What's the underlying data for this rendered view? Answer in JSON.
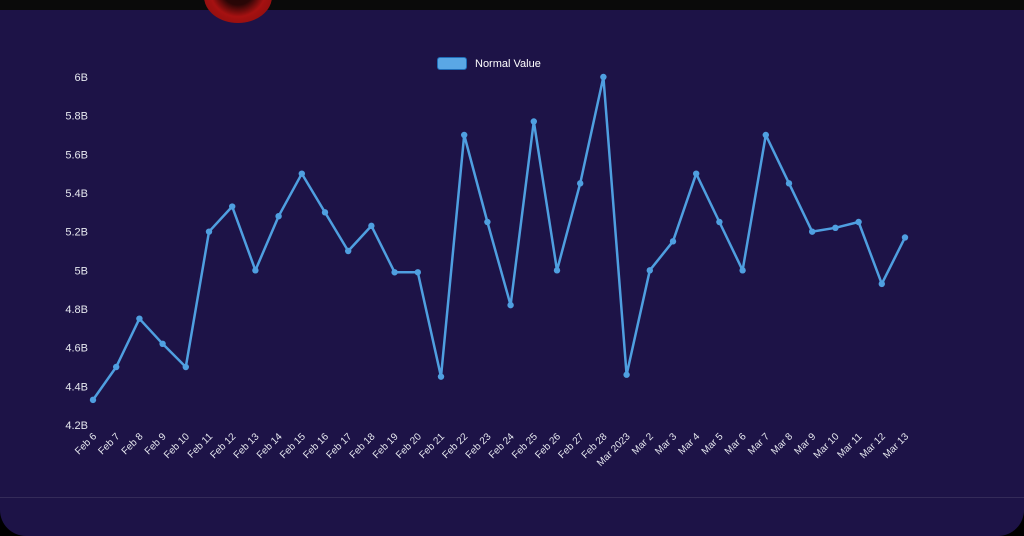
{
  "window": {
    "background_color": "#000000",
    "top_bar_color": "#0a0a0a",
    "panel_color": "#1d1347"
  },
  "logo": {
    "color": "#a61111"
  },
  "legend": {
    "label": "Normal Value",
    "swatch_fill": "#5aa7e5",
    "swatch_border": "#1f6db8"
  },
  "chart_data": {
    "type": "line",
    "title": "",
    "xlabel": "",
    "ylabel": "",
    "categories": [
      "Feb 6",
      "Feb 7",
      "Feb 8",
      "Feb 9",
      "Feb 10",
      "Feb 11",
      "Feb 12",
      "Feb 13",
      "Feb 14",
      "Feb 15",
      "Feb 16",
      "Feb 17",
      "Feb 18",
      "Feb 19",
      "Feb 20",
      "Feb 21",
      "Feb 22",
      "Feb 23",
      "Feb 24",
      "Feb 25",
      "Feb 26",
      "Feb 27",
      "Feb 28",
      "Mar 2023",
      "Mar 2",
      "Mar 3",
      "Mar 4",
      "Mar 5",
      "Mar 6",
      "Mar 7",
      "Mar 8",
      "Mar 9",
      "Mar 10",
      "Mar 11",
      "Mar 12",
      "Mar 13"
    ],
    "series": [
      {
        "name": "Normal Value",
        "color": "#4f9fe0",
        "values": [
          4.33,
          4.5,
          4.75,
          4.62,
          4.5,
          5.2,
          5.33,
          5.0,
          5.28,
          5.5,
          5.3,
          5.1,
          5.23,
          4.99,
          4.99,
          4.45,
          5.7,
          5.25,
          4.82,
          5.77,
          5.0,
          5.45,
          6.0,
          4.46,
          5.0,
          5.15,
          5.5,
          5.25,
          5.0,
          5.7,
          5.45,
          5.2,
          5.22,
          5.25,
          4.93,
          5.17
        ]
      }
    ],
    "ylim": [
      4.2,
      6.0
    ],
    "ytick_values": [
      4.2,
      4.4,
      4.6,
      4.8,
      5.0,
      5.2,
      5.4,
      5.6,
      5.8,
      6.0
    ],
    "ytick_labels": [
      "4.2B",
      "4.4B",
      "4.6B",
      "4.8B",
      "5B",
      "5.2B",
      "5.4B",
      "5.6B",
      "5.8B",
      "6B"
    ],
    "grid": false,
    "legend_position": "top-center",
    "axis_text_color": "#e6e8ef"
  }
}
